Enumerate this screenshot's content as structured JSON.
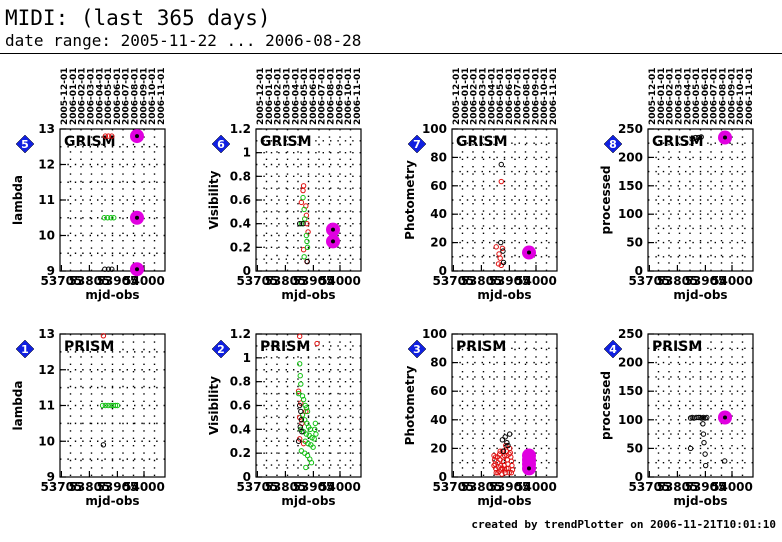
{
  "header": {
    "title": "MIDI: (last 365 days)",
    "date_range": "date range: 2005-11-22 ... 2006-08-28"
  },
  "footer": "created by trendPlotter on 2006-11-21T10:01:10",
  "colors": {
    "highlight": "#e000e0",
    "red": "#e01010",
    "green": "#10c010",
    "badge": "#1020e0"
  },
  "chart_data": [
    {
      "id": 5,
      "type": "scatter",
      "title": "GRISM",
      "xlabel": "mjd-obs",
      "ylabel": "lambda",
      "xlim": [
        53700,
        54075
      ],
      "ylim": [
        9,
        13
      ],
      "yticks": [
        9,
        10,
        11,
        12,
        13
      ],
      "xticks": [
        53705,
        53805,
        53905,
        54000
      ],
      "date_ticks": [
        "2005-12-01",
        "2006-01-01",
        "2006-02-01",
        "2006-03-01",
        "2006-04-01",
        "2006-05-01",
        "2006-06-01",
        "2006-07-01",
        "2006-08-01",
        "2006-09-01",
        "2006-10-01",
        "2006-11-01"
      ],
      "series": [
        {
          "color": "red",
          "points": [
            [
              53862,
              12.8
            ],
            [
              53873,
              12.8
            ],
            [
              53885,
              12.8
            ]
          ]
        },
        {
          "color": "green",
          "points": [
            [
              53858,
              10.5
            ],
            [
              53870,
              10.5
            ],
            [
              53882,
              10.5
            ],
            [
              53892,
              10.5
            ]
          ]
        },
        {
          "color": "black",
          "points": [
            [
              53860,
              9.05
            ],
            [
              53873,
              9.05
            ],
            [
              53885,
              9.05
            ]
          ]
        },
        {
          "color": "highlight",
          "points": [
            [
              53975,
              12.8
            ],
            [
              53975,
              10.5
            ],
            [
              53975,
              9.05
            ]
          ]
        }
      ]
    },
    {
      "id": 6,
      "type": "scatter",
      "title": "GRISM",
      "xlabel": "mjd-obs",
      "ylabel": "Visibility",
      "xlim": [
        53700,
        54075
      ],
      "ylim": [
        0,
        1.2
      ],
      "yticks": [
        0,
        0.2,
        0.4,
        0.6,
        0.8,
        1,
        1.2
      ],
      "xticks": [
        53705,
        53805,
        53905,
        54000
      ],
      "date_ticks": [
        "2005-12-01",
        "2006-01-01",
        "2006-02-01",
        "2006-03-01",
        "2006-04-01",
        "2006-05-01",
        "2006-06-01",
        "2006-07-01",
        "2006-08-01",
        "2006-09-01",
        "2006-10-01",
        "2006-11-01"
      ],
      "series": [
        {
          "color": "red",
          "points": [
            [
              53868,
              0.68
            ],
            [
              53870,
              0.72
            ],
            [
              53862,
              0.58
            ],
            [
              53878,
              0.55
            ],
            [
              53880,
              0.47
            ],
            [
              53882,
              0.4
            ],
            [
              53886,
              0.33
            ],
            [
              53882,
              0.08
            ],
            [
              53870,
              0.18
            ]
          ]
        },
        {
          "color": "green",
          "points": [
            [
              53868,
              0.62
            ],
            [
              53872,
              0.52
            ],
            [
              53862,
              0.4
            ],
            [
              53874,
              0.44
            ],
            [
              53880,
              0.3
            ],
            [
              53882,
              0.25
            ],
            [
              53884,
              0.2
            ],
            [
              53872,
              0.12
            ]
          ]
        },
        {
          "color": "black",
          "points": [
            [
              53856,
              0.4
            ],
            [
              53868,
              0.4
            ],
            [
              53883,
              0.08
            ]
          ]
        },
        {
          "color": "highlight",
          "points": [
            [
              53975,
              0.35
            ],
            [
              53975,
              0.25
            ]
          ]
        }
      ]
    },
    {
      "id": 7,
      "type": "scatter",
      "title": "GRISM",
      "xlabel": "mjd-obs",
      "ylabel": "Photometry",
      "xlim": [
        53700,
        54075
      ],
      "ylim": [
        0,
        100
      ],
      "yticks": [
        0,
        20,
        40,
        60,
        80,
        100
      ],
      "xticks": [
        53705,
        53805,
        53905,
        54000
      ],
      "date_ticks": [
        "2005-12-01",
        "2006-01-01",
        "2006-02-01",
        "2006-03-01",
        "2006-04-01",
        "2006-05-01",
        "2006-06-01",
        "2006-07-01",
        "2006-08-01",
        "2006-09-01",
        "2006-10-01",
        "2006-11-01"
      ],
      "series": [
        {
          "color": "red",
          "points": [
            [
              53876,
              63
            ],
            [
              53858,
              17
            ],
            [
              53868,
              12
            ],
            [
              53872,
              9
            ],
            [
              53880,
              16
            ],
            [
              53866,
              5
            ],
            [
              53876,
              4
            ]
          ]
        },
        {
          "color": "black",
          "points": [
            [
              53876,
              75
            ],
            [
              53874,
              20
            ],
            [
              53882,
              14
            ],
            [
              53884,
              6
            ]
          ]
        },
        {
          "color": "highlight",
          "points": [
            [
              53975,
              13
            ]
          ]
        }
      ]
    },
    {
      "id": 8,
      "type": "scatter",
      "title": "GRISM",
      "xlabel": "mjd-obs",
      "ylabel": "processed",
      "xlim": [
        53700,
        54075
      ],
      "ylim": [
        0,
        250
      ],
      "yticks": [
        0,
        50,
        100,
        150,
        200,
        250
      ],
      "xticks": [
        53705,
        53805,
        53905,
        54000
      ],
      "date_ticks": [
        "2005-12-01",
        "2006-01-01",
        "2006-02-01",
        "2006-03-01",
        "2006-04-01",
        "2006-05-01",
        "2006-06-01",
        "2006-07-01",
        "2006-08-01",
        "2006-09-01",
        "2006-10-01",
        "2006-11-01"
      ],
      "series": [
        {
          "color": "black",
          "points": [
            [
              53858,
              232
            ],
            [
              53870,
              235
            ],
            [
              53880,
              235
            ],
            [
              53890,
              236
            ]
          ]
        },
        {
          "color": "highlight",
          "points": [
            [
              53975,
              235
            ]
          ]
        }
      ]
    },
    {
      "id": 1,
      "type": "scatter",
      "title": "PRISM",
      "xlabel": "mjd-obs",
      "ylabel": "lambda",
      "xlim": [
        53700,
        54075
      ],
      "ylim": [
        9,
        13
      ],
      "yticks": [
        9,
        10,
        11,
        12,
        13
      ],
      "xticks": [
        53705,
        53805,
        53905,
        54000
      ],
      "series": [
        {
          "color": "red",
          "points": [
            [
              53855,
              12.95
            ]
          ]
        },
        {
          "color": "green",
          "points": [
            [
              53852,
              11
            ],
            [
              53862,
              11
            ],
            [
              53872,
              11
            ],
            [
              53882,
              11
            ],
            [
              53890,
              11
            ],
            [
              53898,
              11
            ],
            [
              53905,
              11
            ]
          ]
        },
        {
          "color": "black",
          "points": [
            [
              53855,
              9.9
            ]
          ]
        }
      ]
    },
    {
      "id": 2,
      "type": "scatter",
      "title": "PRISM",
      "xlabel": "mjd-obs",
      "ylabel": "Visibility",
      "xlim": [
        53700,
        54075
      ],
      "ylim": [
        0,
        1.2
      ],
      "yticks": [
        0,
        0.2,
        0.4,
        0.6,
        0.8,
        1,
        1.2
      ],
      "xticks": [
        53705,
        53805,
        53905,
        54000
      ],
      "series": [
        {
          "color": "red",
          "points": [
            [
              53856,
              1.18
            ],
            [
              53918,
              1.12
            ],
            [
              53852,
              0.72
            ],
            [
              53860,
              0.62
            ],
            [
              53856,
              0.5
            ],
            [
              53864,
              0.45
            ],
            [
              53856,
              0.32
            ],
            [
              53870,
              0.28
            ],
            [
              53878,
              0.55
            ]
          ]
        },
        {
          "color": "green",
          "points": [
            [
              53856,
              0.95
            ],
            [
              53858,
              0.85
            ],
            [
              53860,
              0.78
            ],
            [
              53852,
              0.7
            ],
            [
              53866,
              0.68
            ],
            [
              53870,
              0.65
            ],
            [
              53876,
              0.6
            ],
            [
              53880,
              0.58
            ],
            [
              53884,
              0.55
            ],
            [
              53866,
              0.52
            ],
            [
              53874,
              0.48
            ],
            [
              53882,
              0.45
            ],
            [
              53888,
              0.42
            ],
            [
              53894,
              0.4
            ],
            [
              53860,
              0.4
            ],
            [
              53870,
              0.38
            ],
            [
              53880,
              0.36
            ],
            [
              53890,
              0.35
            ],
            [
              53900,
              0.33
            ],
            [
              53908,
              0.32
            ],
            [
              53876,
              0.3
            ],
            [
              53886,
              0.28
            ],
            [
              53896,
              0.27
            ],
            [
              53904,
              0.25
            ],
            [
              53862,
              0.22
            ],
            [
              53874,
              0.2
            ],
            [
              53884,
              0.18
            ],
            [
              53892,
              0.15
            ],
            [
              53898,
              0.12
            ],
            [
              53878,
              0.08
            ],
            [
              53910,
              0.4
            ],
            [
              53914,
              0.36
            ],
            [
              53912,
              0.45
            ]
          ]
        },
        {
          "color": "black",
          "points": [
            [
              53856,
              0.6
            ],
            [
              53860,
              0.55
            ],
            [
              53862,
              0.48
            ],
            [
              53858,
              0.42
            ],
            [
              53864,
              0.38
            ],
            [
              53852,
              0.3
            ]
          ]
        }
      ]
    },
    {
      "id": 3,
      "type": "scatter",
      "title": "PRISM",
      "xlabel": "mjd-obs",
      "ylabel": "Photometry",
      "xlim": [
        53700,
        54075
      ],
      "ylim": [
        0,
        100
      ],
      "yticks": [
        0,
        20,
        40,
        60,
        80,
        100
      ],
      "xticks": [
        53705,
        53805,
        53905,
        54000
      ],
      "series": [
        {
          "color": "red",
          "points": [
            [
              53850,
              15
            ],
            [
              53852,
              12
            ],
            [
              53854,
              9
            ],
            [
              53856,
              6
            ],
            [
              53858,
              3
            ],
            [
              53862,
              14
            ],
            [
              53864,
              10
            ],
            [
              53866,
              7
            ],
            [
              53868,
              4
            ],
            [
              53870,
              16
            ],
            [
              53872,
              12
            ],
            [
              53874,
              8
            ],
            [
              53876,
              5
            ],
            [
              53878,
              2
            ],
            [
              53880,
              18
            ],
            [
              53882,
              14
            ],
            [
              53884,
              11
            ],
            [
              53886,
              8
            ],
            [
              53888,
              5
            ],
            [
              53890,
              3
            ],
            [
              53892,
              22
            ],
            [
              53894,
              18
            ],
            [
              53896,
              15
            ],
            [
              53898,
              12
            ],
            [
              53900,
              9
            ],
            [
              53902,
              6
            ],
            [
              53904,
              3
            ],
            [
              53906,
              20
            ],
            [
              53908,
              17
            ],
            [
              53910,
              14
            ],
            [
              53912,
              11
            ],
            [
              53914,
              8
            ],
            [
              53916,
              5
            ],
            [
              53850,
              8
            ],
            [
              53856,
              14
            ],
            [
              53864,
              3
            ],
            [
              53872,
              18
            ],
            [
              53880,
              6
            ],
            [
              53888,
              15
            ],
            [
              53896,
              6
            ],
            [
              53904,
              16
            ],
            [
              53912,
              3
            ]
          ]
        },
        {
          "color": "black",
          "points": [
            [
              53890,
              28
            ],
            [
              53896,
              24
            ],
            [
              53900,
              22
            ],
            [
              53906,
              30
            ],
            [
              53880,
              26
            ],
            [
              53884,
              18
            ]
          ]
        },
        {
          "color": "highlight",
          "points": [
            [
              53975,
              15
            ],
            [
              53975,
              12
            ],
            [
              53975,
              9
            ],
            [
              53975,
              6
            ]
          ]
        }
      ]
    },
    {
      "id": 4,
      "type": "scatter",
      "title": "PRISM",
      "xlabel": "mjd-obs",
      "ylabel": "processed",
      "xlim": [
        53700,
        54075
      ],
      "ylim": [
        0,
        250
      ],
      "yticks": [
        0,
        50,
        100,
        150,
        200,
        250
      ],
      "xticks": [
        53705,
        53805,
        53905,
        54000
      ],
      "series": [
        {
          "color": "black",
          "points": [
            [
              53852,
              103
            ],
            [
              53858,
              104
            ],
            [
              53864,
              103
            ],
            [
              53872,
              104
            ],
            [
              53880,
              104
            ],
            [
              53886,
              104
            ],
            [
              53892,
              103
            ],
            [
              53898,
              104
            ],
            [
              53904,
              103
            ],
            [
              53910,
              104
            ],
            [
              53852,
              50
            ],
            [
              53898,
              75
            ],
            [
              53904,
              40
            ],
            [
              53900,
              60
            ],
            [
              53906,
              20
            ],
            [
              53974,
              28
            ],
            [
              53896,
              93
            ]
          ]
        },
        {
          "color": "highlight",
          "points": [
            [
              53975,
              104
            ]
          ]
        }
      ]
    }
  ]
}
